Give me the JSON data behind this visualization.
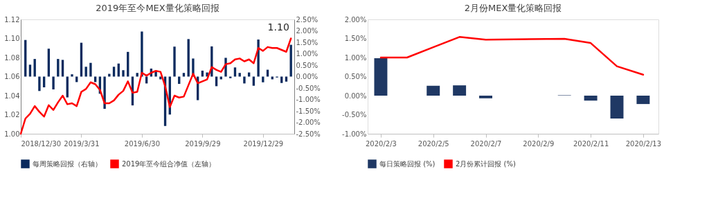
{
  "chart_data": [
    {
      "type": "bar",
      "title": "2019年至今MEX量化策略回报",
      "legend": "bottom",
      "x": [
        "2018-12-30",
        "2019-01-06",
        "2019-01-13",
        "2019-01-20",
        "2019-01-27",
        "2019-02-03",
        "2019-02-10",
        "2019-02-17",
        "2019-02-24",
        "2019-03-03",
        "2019-03-10",
        "2019-03-17",
        "2019-03-24",
        "2019-03-31",
        "2019-04-07",
        "2019-04-14",
        "2019-04-21",
        "2019-04-28",
        "2019-05-05",
        "2019-05-12",
        "2019-05-19",
        "2019-05-26",
        "2019-06-02",
        "2019-06-09",
        "2019-06-16",
        "2019-06-23",
        "2019-06-30",
        "2019-07-07",
        "2019-07-14",
        "2019-07-21",
        "2019-07-28",
        "2019-08-04",
        "2019-08-11",
        "2019-08-18",
        "2019-08-25",
        "2019-09-01",
        "2019-09-08",
        "2019-09-15",
        "2019-09-22",
        "2019-09-29",
        "2019-10-06",
        "2019-10-13",
        "2019-10-20",
        "2019-10-27",
        "2019-11-03",
        "2019-11-10",
        "2019-11-17",
        "2019-11-24",
        "2019-12-01",
        "2019-12-08",
        "2019-12-15",
        "2019-12-22",
        "2019-12-29",
        "2020-01-05",
        "2020-01-12",
        "2020-01-19",
        "2020-01-26",
        "2020-02-02",
        "2020-02-09"
      ],
      "series": [
        {
          "name": "每周策略回报（右轴）",
          "axis": "y2",
          "color": "#0b2a5e",
          "values": [
            null,
            1.6,
            0.52,
            0.77,
            -0.63,
            -0.47,
            1.22,
            -0.56,
            0.77,
            0.73,
            -0.91,
            0.1,
            -0.24,
            1.48,
            0.43,
            0.6,
            -0.24,
            -0.75,
            -1.41,
            0.12,
            0.43,
            0.57,
            0.28,
            1.08,
            -1.26,
            0.16,
            1.97,
            -0.3,
            0.35,
            0.25,
            -0.12,
            -2.16,
            -1.66,
            1.31,
            -0.32,
            0.16,
            1.64,
            0.79,
            -1.03,
            0.26,
            0.18,
            1.32,
            -0.42,
            -0.12,
            0.82,
            -0.07,
            0.4,
            0.16,
            -0.3,
            0.18,
            -0.4,
            1.62,
            -0.25,
            0.3,
            -0.12,
            -0.04,
            -0.28,
            -0.22,
            1.39
          ]
        },
        {
          "name": "2019年至今组合净值（左轴）",
          "type": "line",
          "color": "#ff0000",
          "values": [
            1.0,
            1.016,
            1.021,
            1.029,
            1.023,
            1.018,
            1.03,
            1.025,
            1.033,
            1.04,
            1.031,
            1.032,
            1.029,
            1.044,
            1.047,
            1.054,
            1.052,
            1.046,
            1.032,
            1.032,
            1.035,
            1.041,
            1.045,
            1.055,
            1.043,
            1.044,
            1.064,
            1.061,
            1.064,
            1.066,
            1.065,
            1.05,
            1.028,
            1.04,
            1.038,
            1.039,
            1.051,
            1.063,
            1.053,
            1.055,
            1.057,
            1.07,
            1.067,
            1.065,
            1.073,
            1.074,
            1.078,
            1.079,
            1.076,
            1.078,
            1.074,
            1.09,
            1.087,
            1.091,
            1.09,
            1.09,
            1.088,
            1.086,
            1.1
          ]
        }
      ],
      "xlim": [
        "2018-12-30",
        "2020-02-14"
      ],
      "xticks": [
        {
          "value": "2018-12-30",
          "label": "2018/12/30"
        },
        {
          "value": "2019-03-31",
          "label": "2019/3/31"
        },
        {
          "value": "2019-06-30",
          "label": "2019/6/30"
        },
        {
          "value": "2019-09-29",
          "label": "2019/9/29"
        },
        {
          "value": "2019-12-29",
          "label": "2019/12/29"
        }
      ],
      "ylim": [
        1.0,
        1.12
      ],
      "yticks": [
        {
          "value": 1.0,
          "label": "1.00"
        },
        {
          "value": 1.02,
          "label": "1.02"
        },
        {
          "value": 1.04,
          "label": "1.04"
        },
        {
          "value": 1.06,
          "label": "1.06"
        },
        {
          "value": 1.08,
          "label": "1.08"
        },
        {
          "value": 1.1,
          "label": "1.10"
        },
        {
          "value": 1.12,
          "label": "1.12"
        }
      ],
      "y2lim": [
        -2.5,
        2.5
      ],
      "y2ticks": [
        {
          "value": -2.5,
          "label": "-2.50%"
        },
        {
          "value": -2.0,
          "label": "-2.00%"
        },
        {
          "value": -1.5,
          "label": "-1.50%"
        },
        {
          "value": -1.0,
          "label": "-1.00%"
        },
        {
          "value": -0.5,
          "label": "-0.50%"
        },
        {
          "value": 0,
          "label": "0.00%"
        },
        {
          "value": 0.5,
          "label": "0.50%"
        },
        {
          "value": 1.0,
          "label": "1.00%"
        },
        {
          "value": 1.5,
          "label": "1.50%"
        },
        {
          "value": 2.0,
          "label": "2.00%"
        },
        {
          "value": 2.5,
          "label": "2.50%"
        }
      ],
      "annotations": [
        {
          "text": "1.10",
          "x": "2020-02-09",
          "y": 1.1
        }
      ]
    },
    {
      "type": "bar",
      "title": "2月份MEX量化策略回报",
      "legend": "bottom",
      "x": [
        "2020-02-03",
        "2020-02-04",
        "2020-02-05",
        "2020-02-06",
        "2020-02-07",
        "2020-02-10",
        "2020-02-11",
        "2020-02-12",
        "2020-02-13"
      ],
      "series": [
        {
          "name": "每日策略回报 (%)",
          "color": "#1f3864",
          "values": [
            0.98,
            0,
            0.26,
            0.27,
            -0.07,
            0.01,
            -0.13,
            -0.6,
            -0.22
          ]
        },
        {
          "name": "2月份累计回报 (%)",
          "type": "line",
          "color": "#ff0000",
          "values": [
            1.0,
            1.0,
            1.27,
            1.54,
            1.47,
            1.49,
            1.38,
            0.77,
            0.55
          ]
        }
      ],
      "xlim": [
        "2020-02-02T12:00",
        "2020-02-13T14:00"
      ],
      "xticks": [
        {
          "value": "2020-02-03",
          "label": "2020/2/3"
        },
        {
          "value": "2020-02-05",
          "label": "2020/2/5"
        },
        {
          "value": "2020-02-07",
          "label": "2020/2/7"
        },
        {
          "value": "2020-02-09",
          "label": "2020/2/9"
        },
        {
          "value": "2020-02-11",
          "label": "2020/2/11"
        },
        {
          "value": "2020-02-13",
          "label": "2020/2/13"
        }
      ],
      "ylim": [
        -1.0,
        2.0
      ],
      "yticks": [
        {
          "value": -1.0,
          "label": "-1.00%"
        },
        {
          "value": -0.5,
          "label": "-0.50%"
        },
        {
          "value": 0,
          "label": "0.00%"
        },
        {
          "value": 0.5,
          "label": "0.50%"
        },
        {
          "value": 1.0,
          "label": "1.00%"
        },
        {
          "value": 1.5,
          "label": "1.50%"
        },
        {
          "value": 2.0,
          "label": "2.00%"
        }
      ]
    }
  ]
}
